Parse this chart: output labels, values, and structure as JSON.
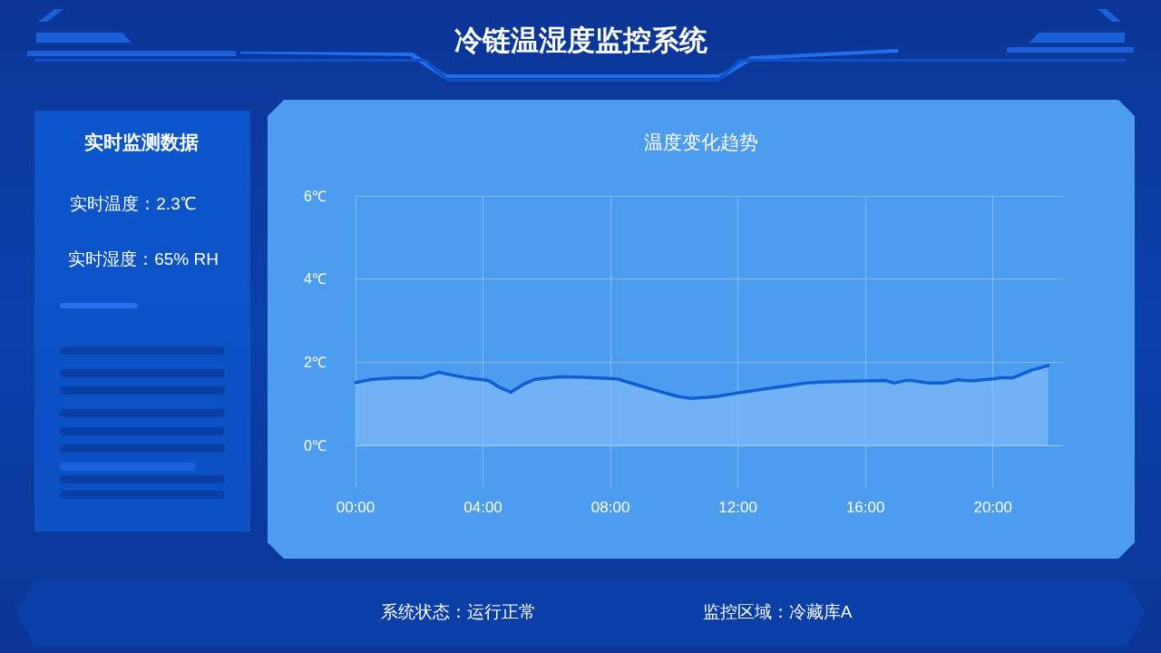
{
  "chart_data": {
    "type": "area",
    "title": "冷链温湿度监控系统",
    "subtitle": "温度变化趋势",
    "annotations": [
      "实时监测数据",
      "实时温度：2.3℃",
      "实时湿度：65% RH",
      "系统状态：运行正常",
      "监控区域：冷藏库A"
    ],
    "x": [
      0,
      0.52,
      1.18,
      2.09,
      2.61,
      3.46,
      4.17,
      4.51,
      4.87,
      5.27,
      5.64,
      6.4,
      7.16,
      8.21,
      8.78,
      9.44,
      10.1,
      10.53,
      11.05,
      11.34,
      11.97,
      12.86,
      13.52,
      14.14,
      14.75,
      15.99,
      16.65,
      16.89,
      17.27,
      17.46,
      17.98,
      18.45,
      18.88,
      19.31,
      20,
      20.26,
      20.64,
      21.21,
      21.73
    ],
    "series": [
      {
        "color": "#0d5fd6",
        "values": [
          1.51,
          1.59,
          1.62,
          1.63,
          1.76,
          1.63,
          1.56,
          1.4,
          1.28,
          1.47,
          1.59,
          1.65,
          1.64,
          1.6,
          1.47,
          1.32,
          1.18,
          1.13,
          1.16,
          1.18,
          1.26,
          1.36,
          1.43,
          1.5,
          1.53,
          1.55,
          1.56,
          1.5,
          1.56,
          1.56,
          1.5,
          1.5,
          1.58,
          1.55,
          1.6,
          1.63,
          1.63,
          1.81,
          1.92
        ]
      }
    ],
    "xlim": [
      0,
      22.2
    ],
    "xticks": [
      {
        "value": 0,
        "label": "00:00"
      },
      {
        "value": 4,
        "label": "04:00"
      },
      {
        "value": 8,
        "label": "08:00"
      },
      {
        "value": 12,
        "label": "12:00"
      },
      {
        "value": 16,
        "label": "16:00"
      },
      {
        "value": 20,
        "label": "20:00"
      }
    ],
    "ylim": [
      -1,
      6
    ],
    "yticks": [
      {
        "value": 0,
        "label": "0℃"
      },
      {
        "value": 2,
        "label": "2℃"
      },
      {
        "value": 4,
        "label": "4℃"
      },
      {
        "value": 6,
        "label": "6℃"
      }
    ],
    "grid": true,
    "marker": "none",
    "line_style": "solid"
  }
}
